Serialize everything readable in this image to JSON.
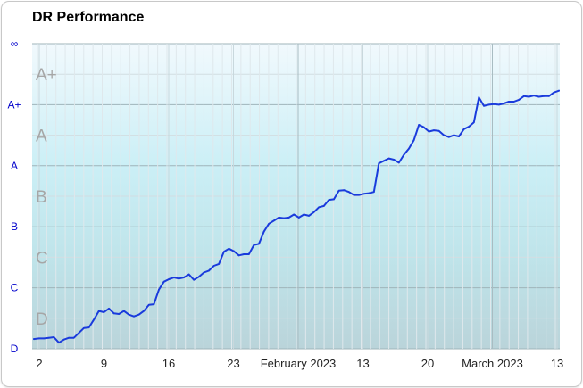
{
  "chart_data": {
    "type": "line",
    "title": "DR Performance",
    "x_tick_labels": [
      "2",
      "9",
      "16",
      "23",
      "February 2023",
      "13",
      "20",
      "March 2023",
      "13"
    ],
    "x_major_ticks": [
      "February 2023",
      "March 2023"
    ],
    "y_tick_labels": [
      "∞",
      "A+",
      "A",
      "B",
      "C",
      "D"
    ],
    "y_tick_values": [
      5,
      4,
      3,
      2,
      1,
      0
    ],
    "band_labels": [
      "A+",
      "A",
      "B",
      "C",
      "D"
    ],
    "band_label_values": [
      4.5,
      3.5,
      2.5,
      1.5,
      0.5
    ],
    "ylim": [
      0,
      5
    ],
    "grid": true,
    "colors": {
      "line": "#1a3bdc",
      "label": "#0000cc",
      "band_top": "#f1f9fd",
      "band_bottom": "#bad4da"
    },
    "series": [
      {
        "values": [
          0.16,
          0.17,
          0.17,
          0.18,
          0.19,
          0.1,
          0.15,
          0.18,
          0.18,
          0.26,
          0.34,
          0.35,
          0.48,
          0.62,
          0.6,
          0.66,
          0.58,
          0.57,
          0.62,
          0.56,
          0.53,
          0.56,
          0.62,
          0.72,
          0.73,
          0.97,
          1.1,
          1.14,
          1.17,
          1.15,
          1.17,
          1.22,
          1.13,
          1.18,
          1.25,
          1.28,
          1.36,
          1.39,
          1.59,
          1.64,
          1.6,
          1.53,
          1.55,
          1.55,
          1.7,
          1.72,
          1.92,
          2.05,
          2.1,
          2.15,
          2.14,
          2.15,
          2.2,
          2.15,
          2.2,
          2.18,
          2.24,
          2.32,
          2.34,
          2.44,
          2.45,
          2.59,
          2.6,
          2.57,
          2.52,
          2.52,
          2.54,
          2.55,
          2.57,
          3.04,
          3.08,
          3.12,
          3.1,
          3.05,
          3.18,
          3.28,
          3.42,
          3.67,
          3.63,
          3.56,
          3.58,
          3.57,
          3.5,
          3.47,
          3.5,
          3.48,
          3.6,
          3.64,
          3.71,
          4.12,
          3.98,
          4.0,
          4.01,
          4.0,
          4.02,
          4.05,
          4.05,
          4.08,
          4.14,
          4.13,
          4.15,
          4.13,
          4.14,
          4.14,
          4.2,
          4.23
        ]
      }
    ]
  }
}
